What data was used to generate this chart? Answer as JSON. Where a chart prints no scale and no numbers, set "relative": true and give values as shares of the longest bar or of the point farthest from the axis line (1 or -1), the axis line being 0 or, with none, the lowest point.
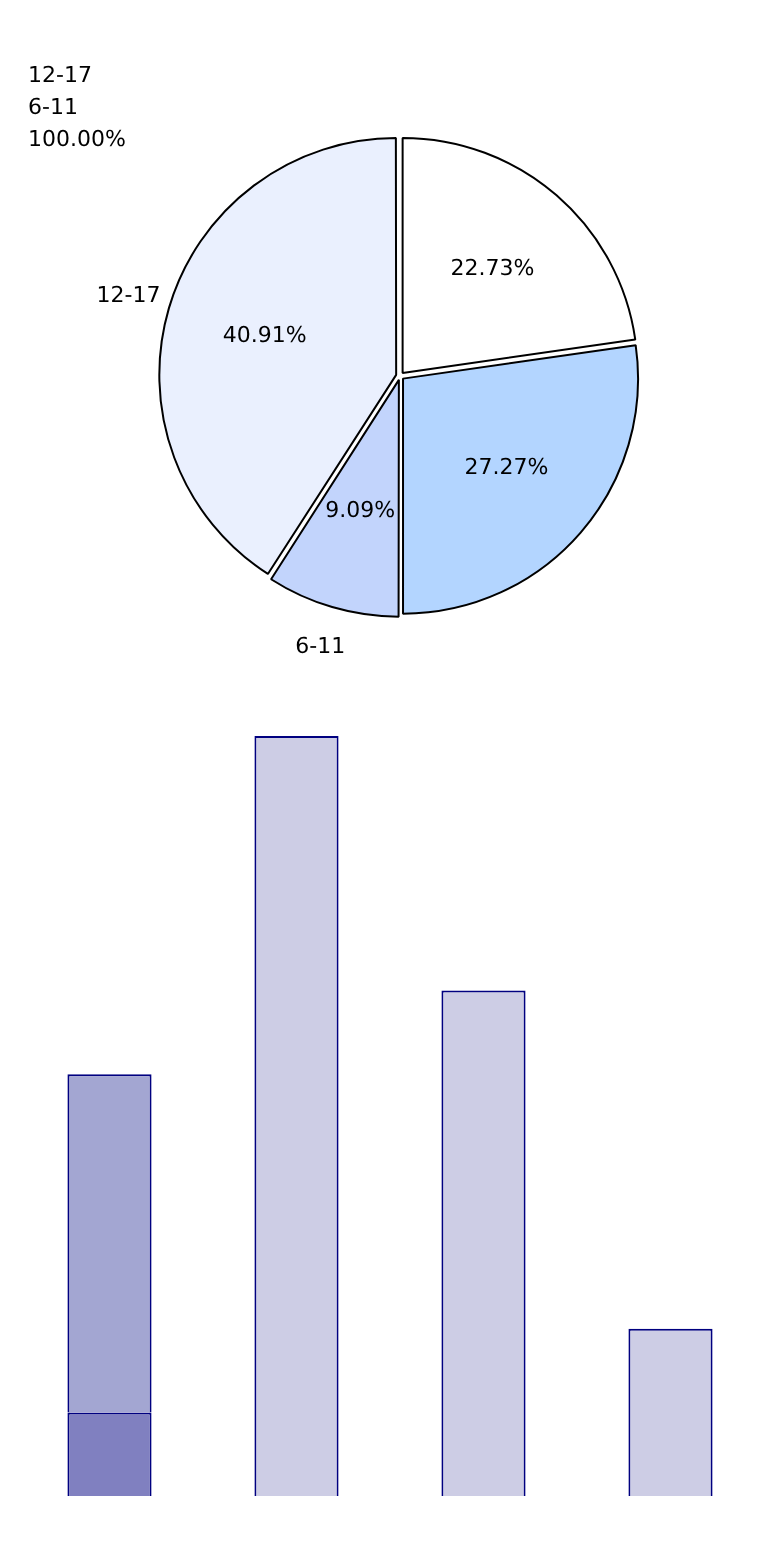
{
  "chart_data": [
    {
      "type": "pie",
      "categories": [
        null,
        null,
        "6-11",
        "12-17"
      ],
      "values": [
        22.73,
        27.27,
        9.09,
        40.91
      ],
      "colors": [
        "#ffffff",
        "#b3d5ff",
        "#c2d4fc",
        "#eaf0fe"
      ],
      "value_labels": [
        "22.73%",
        "27.27%",
        "9.09%",
        "40.91%"
      ],
      "annotations": [
        "12-17",
        "6-11",
        "100.00%"
      ]
    },
    {
      "type": "bar",
      "relative": true,
      "stacked": true,
      "categories": [
        null,
        null,
        null,
        null
      ],
      "series": [
        {
          "color": "#8080c0",
          "values": [
            0.11,
            0,
            0,
            0
          ]
        },
        {
          "colors": [
            "#a3a6d2",
            "#cdcde5",
            "#cdcde5",
            "#cdcde5"
          ],
          "values": [
            0.445,
            1,
            0.665,
            0.22
          ]
        }
      ]
    }
  ]
}
